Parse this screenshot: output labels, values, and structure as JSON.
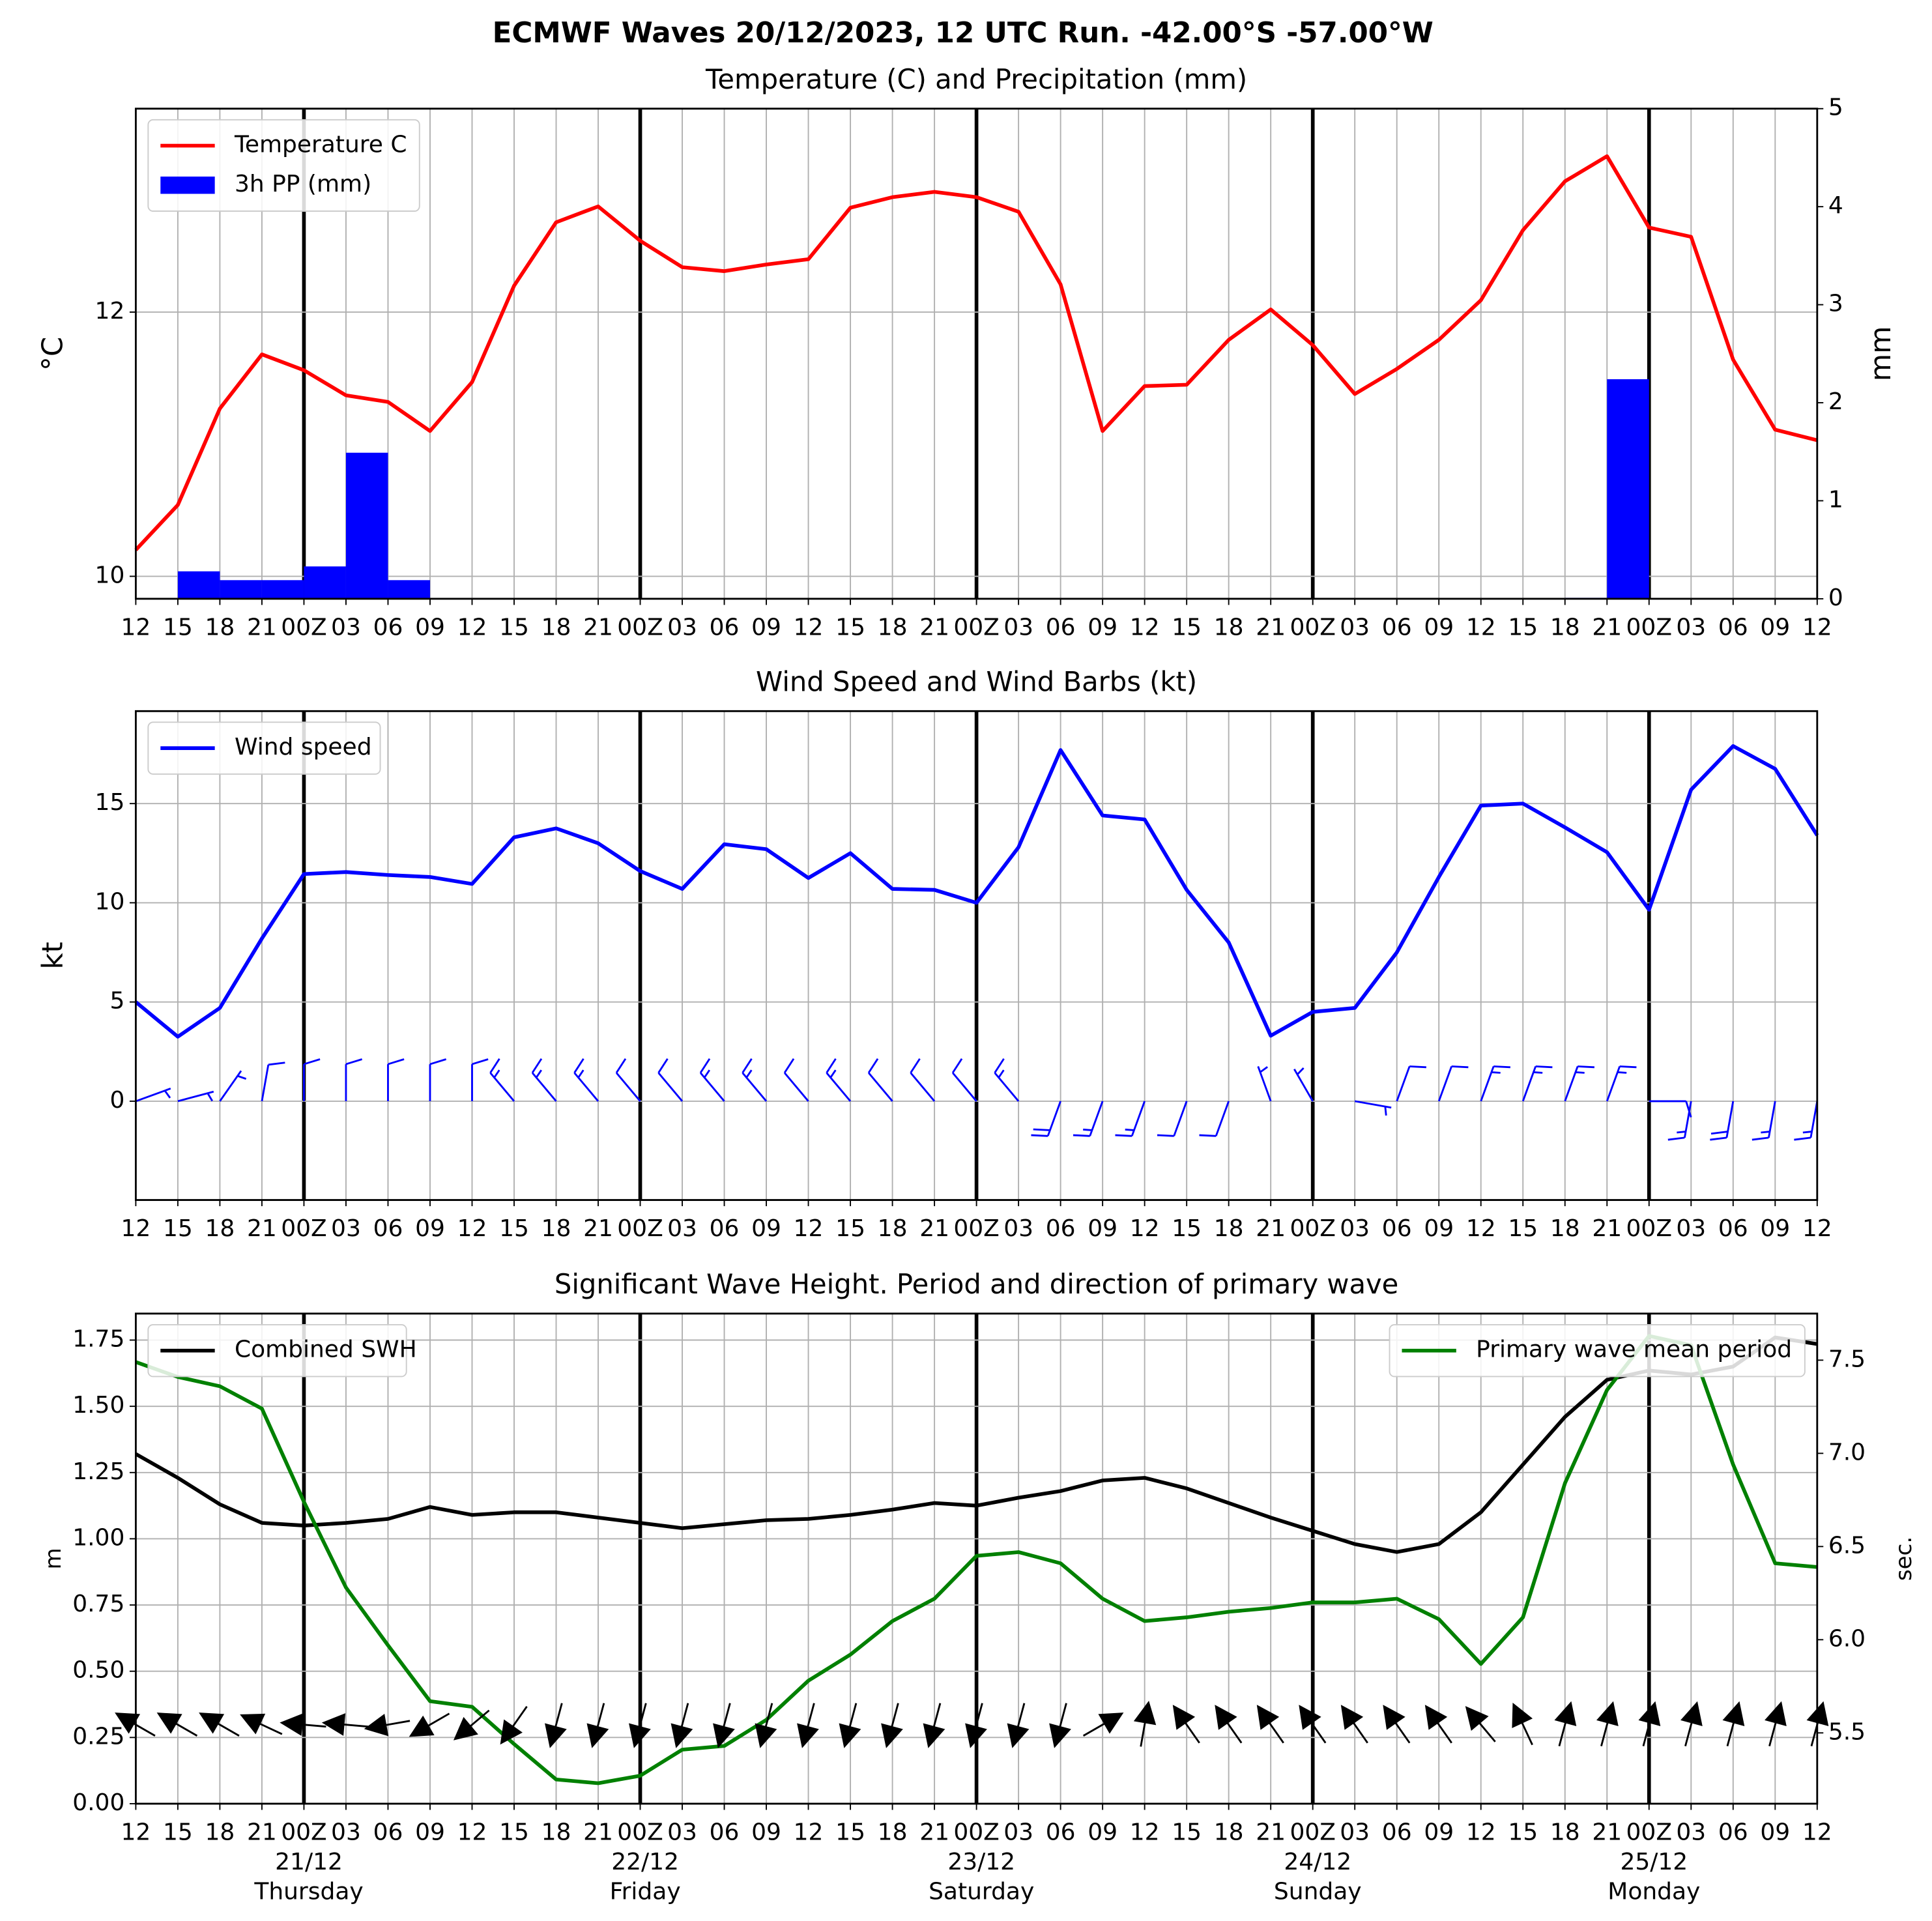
{
  "title": "ECMWF Waves 20/12/2023, 12 UTC Run. -42.00°S -57.00°W",
  "chart_data": [
    {
      "type": "line",
      "title": "Temperature (C) and Precipitation (mm)",
      "categories": [
        "12",
        "15",
        "18",
        "21",
        "00Z",
        "03",
        "06",
        "09",
        "12",
        "15",
        "18",
        "21",
        "00Z",
        "03",
        "06",
        "09",
        "12",
        "15",
        "18",
        "21",
        "00Z",
        "03",
        "06",
        "09",
        "12",
        "15",
        "18",
        "21",
        "00Z",
        "03",
        "06",
        "09",
        "12",
        "15",
        "18",
        "21",
        "00Z",
        "03",
        "06",
        "09",
        "12"
      ],
      "series": [
        {
          "name": "Temperature C",
          "color": "#ff0000",
          "values": [
            10.2,
            10.54,
            11.27,
            11.68,
            11.56,
            11.37,
            11.32,
            11.1,
            11.47,
            12.2,
            12.68,
            12.8,
            12.54,
            12.34,
            12.31,
            12.36,
            12.4,
            12.79,
            12.87,
            12.91,
            12.87,
            12.76,
            12.21,
            11.1,
            11.44,
            11.45,
            11.79,
            12.02,
            11.75,
            11.38,
            11.57,
            11.79,
            12.09,
            12.62,
            12.99,
            13.18,
            12.64,
            12.57,
            11.64,
            11.11,
            11.03
          ]
        },
        {
          "name": "3h PP (mm)",
          "color": "#0000ff",
          "type": "bar",
          "axis": "y2",
          "values": [
            0,
            0,
            0.28,
            0.19,
            0.19,
            0.33,
            1.49,
            0.19,
            0,
            0,
            0,
            0,
            0,
            0,
            0,
            0,
            0,
            0,
            0,
            0,
            0,
            0,
            0,
            0,
            0,
            0,
            0,
            0,
            0,
            0,
            0,
            0,
            0,
            0,
            0,
            0.01,
            2.24,
            0,
            0,
            0,
            0
          ]
        }
      ],
      "ylabel": "°C",
      "y2label": "mm",
      "ylim": [
        9.83,
        13.54
      ],
      "yticks": [
        10,
        12
      ],
      "y2lim": [
        0,
        5
      ],
      "y2ticks": [
        0,
        1,
        2,
        3,
        4,
        5
      ],
      "grid": true,
      "legend": "upper left"
    },
    {
      "type": "line",
      "title": "Wind Speed and Wind Barbs (kt)",
      "categories": [
        "12",
        "15",
        "18",
        "21",
        "00Z",
        "03",
        "06",
        "09",
        "12",
        "15",
        "18",
        "21",
        "00Z",
        "03",
        "06",
        "09",
        "12",
        "15",
        "18",
        "21",
        "00Z",
        "03",
        "06",
        "09",
        "12",
        "15",
        "18",
        "21",
        "00Z",
        "03",
        "06",
        "09",
        "12",
        "15",
        "18",
        "21",
        "00Z",
        "03",
        "06",
        "09",
        "12"
      ],
      "series": [
        {
          "name": "Wind speed",
          "color": "#0000ff",
          "values": [
            5.0,
            3.25,
            4.7,
            8.2,
            11.45,
            11.55,
            11.4,
            11.3,
            10.95,
            13.3,
            13.75,
            13.0,
            11.6,
            10.7,
            12.95,
            12.7,
            11.25,
            12.5,
            10.7,
            10.65,
            10.0,
            12.8,
            17.7,
            14.4,
            14.2,
            10.65,
            8.0,
            3.3,
            4.5,
            4.7,
            7.5,
            11.3,
            14.9,
            15.0,
            13.8,
            12.55,
            9.65,
            15.7,
            17.9,
            16.75,
            13.4
          ]
        }
      ],
      "barb_directions": [
        70,
        75,
        35,
        10,
        0,
        0,
        0,
        0,
        0,
        320,
        320,
        320,
        320,
        320,
        320,
        320,
        320,
        320,
        320,
        320,
        320,
        320,
        200,
        200,
        200,
        200,
        200,
        340,
        330,
        100,
        20,
        20,
        20,
        20,
        20,
        20,
        90,
        190,
        190,
        190,
        190
      ],
      "ylabel": "kt",
      "ylim": [
        -4.98,
        19.66
      ],
      "yticks": [
        0,
        5,
        10,
        15
      ],
      "grid": true,
      "legend": "upper left"
    },
    {
      "type": "line",
      "title": "Significant Wave Height. Period and direction of primary wave",
      "categories": [
        "12",
        "15",
        "18",
        "21",
        "00Z",
        "03",
        "06",
        "09",
        "12",
        "15",
        "18",
        "21",
        "00Z",
        "03",
        "06",
        "09",
        "12",
        "15",
        "18",
        "21",
        "00Z",
        "03",
        "06",
        "09",
        "12",
        "15",
        "18",
        "21",
        "00Z",
        "03",
        "06",
        "09",
        "12",
        "15",
        "18",
        "21",
        "00Z",
        "03",
        "06",
        "09",
        "12"
      ],
      "series": [
        {
          "name": "Combined SWH",
          "color": "#000000",
          "values": [
            1.32,
            1.23,
            1.13,
            1.06,
            1.05,
            1.06,
            1.075,
            1.12,
            1.09,
            1.1,
            1.1,
            1.08,
            1.06,
            1.04,
            1.055,
            1.07,
            1.075,
            1.09,
            1.11,
            1.135,
            1.125,
            1.155,
            1.18,
            1.22,
            1.23,
            1.19,
            1.135,
            1.08,
            1.03,
            0.98,
            0.95,
            0.98,
            1.1,
            1.28,
            1.46,
            1.6,
            1.635,
            1.62,
            1.65,
            1.76,
            1.735
          ]
        },
        {
          "name": "Primary wave mean period",
          "color": "#008000",
          "axis": "y2",
          "values": [
            7.49,
            7.41,
            7.36,
            7.24,
            6.74,
            6.28,
            5.97,
            5.67,
            5.64,
            5.44,
            5.25,
            5.23,
            5.27,
            5.41,
            5.43,
            5.57,
            5.78,
            5.92,
            6.1,
            6.22,
            6.45,
            6.47,
            6.41,
            6.22,
            6.1,
            6.12,
            6.15,
            6.17,
            6.2,
            6.2,
            6.22,
            6.11,
            5.87,
            6.12,
            6.84,
            7.34,
            7.63,
            7.58,
            6.94,
            6.41,
            6.39
          ]
        }
      ],
      "wave_directions": [
        300,
        300,
        300,
        295,
        275,
        275,
        260,
        240,
        230,
        215,
        195,
        195,
        195,
        195,
        195,
        195,
        195,
        195,
        195,
        195,
        195,
        195,
        195,
        60,
        10,
        325,
        325,
        325,
        325,
        325,
        325,
        325,
        320,
        335,
        15,
        15,
        15,
        15,
        15,
        15,
        15
      ],
      "ylabel": "m",
      "y2label": "sec.",
      "y2color": "#008000",
      "ylim": [
        0,
        1.85
      ],
      "yticks": [
        {
          "value": 0,
          "label": "0.00"
        },
        0.25,
        {
          "value": 0.5,
          "label": "0.50"
        },
        0.75,
        {
          "value": 1,
          "label": "1.00"
        },
        1.25,
        {
          "value": 1.5,
          "label": "1.50"
        },
        1.75
      ],
      "y2lim": [
        5.12,
        7.75
      ],
      "y2ticks": [
        5.5,
        {
          "value": 6,
          "label": "6.0"
        },
        6.5,
        {
          "value": 7,
          "label": "7.0"
        },
        7.5
      ],
      "dates": [
        "21/12",
        "22/12",
        "23/12",
        "24/12",
        "25/12"
      ],
      "days": [
        "Thursday",
        "Friday",
        "Saturday",
        "Sunday",
        "Monday"
      ],
      "grid": true,
      "legend": "upper left",
      "legend2": "upper right"
    }
  ]
}
